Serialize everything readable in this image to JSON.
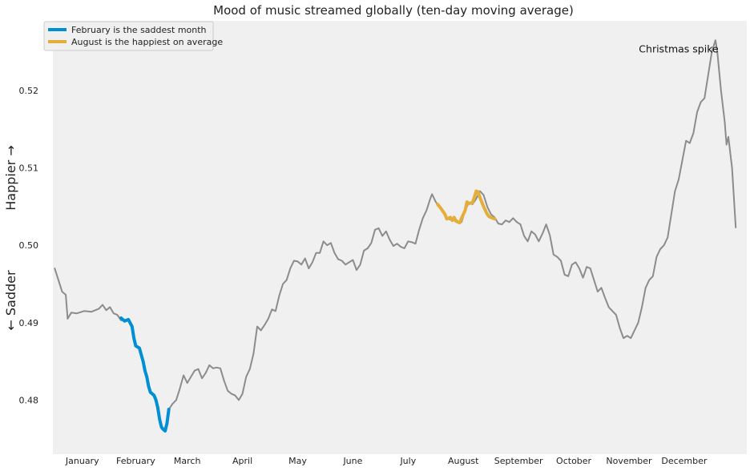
{
  "chart_data": {
    "type": "line",
    "title": "Mood of music streamed globally (ten-day moving average)",
    "ylabel_top": "Happier →",
    "ylabel_bottom": "← Sadder",
    "ylim": [
      0.473,
      0.529
    ],
    "xlim": [
      0,
      377
    ],
    "yticks": [
      "0.48",
      "0.49",
      "0.50",
      "0.51",
      "0.52"
    ],
    "ytick_values": [
      0.48,
      0.49,
      0.5,
      0.51,
      0.52
    ],
    "months": [
      "January",
      "February",
      "March",
      "April",
      "May",
      "June",
      "July",
      "August",
      "September",
      "October",
      "November",
      "December"
    ],
    "month_tick_days": [
      16,
      45,
      73,
      103,
      133,
      163,
      193,
      223,
      253,
      283,
      313,
      343
    ],
    "grid": false,
    "legend_position": "top-left",
    "annotation": {
      "text": "Christmas spike",
      "day": 340,
      "value": 0.5249
    },
    "colors": {
      "base": "#8c8c8c",
      "february": "#008fd5",
      "august": "#e5ae38",
      "background": "#f0f0f0"
    },
    "series": [
      {
        "name": "",
        "role": "base",
        "points": [
          [
            1,
            0.497
          ],
          [
            3,
            0.4955
          ],
          [
            5,
            0.494
          ],
          [
            7,
            0.4936
          ],
          [
            8,
            0.4905
          ],
          [
            10,
            0.4913
          ],
          [
            13,
            0.4912
          ],
          [
            17,
            0.4915
          ],
          [
            21,
            0.4914
          ],
          [
            25,
            0.4918
          ],
          [
            27,
            0.4923
          ],
          [
            29,
            0.4916
          ],
          [
            31,
            0.492
          ],
          [
            33,
            0.4912
          ],
          [
            35,
            0.491
          ],
          [
            37,
            0.4903
          ],
          [
            41,
            0.4904
          ],
          [
            43,
            0.4895
          ],
          [
            45,
            0.487
          ],
          [
            47,
            0.4867
          ],
          [
            49,
            0.485
          ],
          [
            51,
            0.483
          ],
          [
            53,
            0.481
          ],
          [
            55,
            0.4806
          ],
          [
            57,
            0.479
          ],
          [
            59,
            0.4765
          ],
          [
            61,
            0.476
          ],
          [
            63,
            0.4788
          ],
          [
            65,
            0.4795
          ],
          [
            67,
            0.48
          ],
          [
            69,
            0.4815
          ],
          [
            71,
            0.4832
          ],
          [
            73,
            0.4822
          ],
          [
            75,
            0.483
          ],
          [
            77,
            0.4838
          ],
          [
            79,
            0.484
          ],
          [
            81,
            0.4828
          ],
          [
            83,
            0.4835
          ],
          [
            85,
            0.4845
          ],
          [
            87,
            0.4841
          ],
          [
            89,
            0.4842
          ],
          [
            91,
            0.4841
          ],
          [
            93,
            0.4825
          ],
          [
            95,
            0.4812
          ],
          [
            97,
            0.4808
          ],
          [
            99,
            0.4806
          ],
          [
            101,
            0.48
          ],
          [
            103,
            0.4808
          ],
          [
            105,
            0.483
          ],
          [
            107,
            0.484
          ],
          [
            109,
            0.486
          ],
          [
            111,
            0.4895
          ],
          [
            113,
            0.489
          ],
          [
            115,
            0.4897
          ],
          [
            117,
            0.4905
          ],
          [
            119,
            0.4917
          ],
          [
            121,
            0.4915
          ],
          [
            123,
            0.4935
          ],
          [
            125,
            0.495
          ],
          [
            127,
            0.4955
          ],
          [
            129,
            0.497
          ],
          [
            131,
            0.498
          ],
          [
            133,
            0.4979
          ],
          [
            135,
            0.4975
          ],
          [
            137,
            0.4983
          ],
          [
            139,
            0.497
          ],
          [
            141,
            0.4978
          ],
          [
            143,
            0.499
          ],
          [
            145,
            0.499
          ],
          [
            147,
            0.5005
          ],
          [
            149,
            0.5
          ],
          [
            151,
            0.5003
          ],
          [
            153,
            0.499
          ],
          [
            155,
            0.4982
          ],
          [
            157,
            0.498
          ],
          [
            159,
            0.4975
          ],
          [
            161,
            0.4978
          ],
          [
            163,
            0.4981
          ],
          [
            165,
            0.4968
          ],
          [
            167,
            0.4975
          ],
          [
            169,
            0.4993
          ],
          [
            171,
            0.4996
          ],
          [
            173,
            0.5003
          ],
          [
            175,
            0.502
          ],
          [
            177,
            0.5022
          ],
          [
            179,
            0.5012
          ],
          [
            181,
            0.5018
          ],
          [
            183,
            0.5007
          ],
          [
            185,
            0.4999
          ],
          [
            187,
            0.5002
          ],
          [
            189,
            0.4998
          ],
          [
            191,
            0.4996
          ],
          [
            193,
            0.5005
          ],
          [
            195,
            0.5004
          ],
          [
            197,
            0.5002
          ],
          [
            199,
            0.502
          ],
          [
            201,
            0.5035
          ],
          [
            203,
            0.5045
          ],
          [
            205,
            0.506
          ],
          [
            206,
            0.5066
          ],
          [
            208,
            0.5056
          ],
          [
            210,
            0.505
          ],
          [
            212,
            0.5043
          ],
          [
            214,
            0.5035
          ],
          [
            216,
            0.5033
          ],
          [
            218,
            0.5035
          ],
          [
            220,
            0.5031
          ],
          [
            222,
            0.503
          ],
          [
            224,
            0.5045
          ],
          [
            226,
            0.5055
          ],
          [
            228,
            0.5053
          ],
          [
            230,
            0.506
          ],
          [
            232,
            0.507
          ],
          [
            234,
            0.5065
          ],
          [
            236,
            0.505
          ],
          [
            238,
            0.504
          ],
          [
            240,
            0.5036
          ],
          [
            242,
            0.5028
          ],
          [
            244,
            0.5027
          ],
          [
            246,
            0.5032
          ],
          [
            248,
            0.503
          ],
          [
            250,
            0.5035
          ],
          [
            252,
            0.503
          ],
          [
            254,
            0.5027
          ],
          [
            256,
            0.5012
          ],
          [
            258,
            0.5005
          ],
          [
            260,
            0.5018
          ],
          [
            262,
            0.5014
          ],
          [
            264,
            0.5005
          ],
          [
            266,
            0.5015
          ],
          [
            268,
            0.5027
          ],
          [
            270,
            0.5013
          ],
          [
            272,
            0.4988
          ],
          [
            274,
            0.4985
          ],
          [
            276,
            0.498
          ],
          [
            278,
            0.4962
          ],
          [
            280,
            0.496
          ],
          [
            282,
            0.4975
          ],
          [
            284,
            0.4978
          ],
          [
            286,
            0.497
          ],
          [
            288,
            0.4958
          ],
          [
            290,
            0.4972
          ],
          [
            292,
            0.497
          ],
          [
            294,
            0.4955
          ],
          [
            296,
            0.494
          ],
          [
            298,
            0.4945
          ],
          [
            300,
            0.4932
          ],
          [
            302,
            0.492
          ],
          [
            304,
            0.4915
          ],
          [
            306,
            0.491
          ],
          [
            308,
            0.4893
          ],
          [
            310,
            0.488
          ],
          [
            312,
            0.4883
          ],
          [
            314,
            0.488
          ],
          [
            316,
            0.489
          ],
          [
            318,
            0.49
          ],
          [
            320,
            0.492
          ],
          [
            322,
            0.4945
          ],
          [
            324,
            0.4955
          ],
          [
            326,
            0.496
          ],
          [
            328,
            0.4985
          ],
          [
            330,
            0.4995
          ],
          [
            332,
            0.5
          ],
          [
            334,
            0.501
          ],
          [
            336,
            0.504
          ],
          [
            338,
            0.507
          ],
          [
            340,
            0.5085
          ],
          [
            342,
            0.511
          ],
          [
            344,
            0.5135
          ],
          [
            346,
            0.5132
          ],
          [
            348,
            0.5145
          ],
          [
            350,
            0.5172
          ],
          [
            352,
            0.5185
          ],
          [
            354,
            0.519
          ],
          [
            356,
            0.522
          ],
          [
            358,
            0.525
          ],
          [
            360,
            0.5265
          ],
          [
            361,
            0.525
          ],
          [
            363,
            0.52
          ],
          [
            365,
            0.516
          ],
          [
            366,
            0.513
          ],
          [
            367,
            0.514
          ],
          [
            369,
            0.51
          ],
          [
            371,
            0.5023
          ]
        ]
      },
      {
        "name": "February is the saddest month",
        "role": "february",
        "points": [
          [
            37,
            0.4906
          ],
          [
            39,
            0.4902
          ],
          [
            41,
            0.4904
          ],
          [
            43,
            0.4895
          ],
          [
            44,
            0.488
          ],
          [
            45,
            0.487
          ],
          [
            47,
            0.4867
          ],
          [
            49,
            0.485
          ],
          [
            50,
            0.4838
          ],
          [
            51,
            0.483
          ],
          [
            52,
            0.4818
          ],
          [
            53,
            0.481
          ],
          [
            55,
            0.4806
          ],
          [
            56,
            0.48
          ],
          [
            57,
            0.479
          ],
          [
            58,
            0.4775
          ],
          [
            59,
            0.4765
          ],
          [
            60,
            0.4762
          ],
          [
            61,
            0.476
          ],
          [
            62,
            0.477
          ],
          [
            63,
            0.4788
          ]
        ]
      },
      {
        "name": "August is the happiest on average",
        "role": "august",
        "points": [
          [
            209,
            0.5053
          ],
          [
            211,
            0.5047
          ],
          [
            213,
            0.504
          ],
          [
            214,
            0.5034
          ],
          [
            216,
            0.5036
          ],
          [
            217,
            0.5032
          ],
          [
            218,
            0.5036
          ],
          [
            219,
            0.5031
          ],
          [
            221,
            0.5029
          ],
          [
            222,
            0.5035
          ],
          [
            224,
            0.5045
          ],
          [
            225,
            0.5056
          ],
          [
            226,
            0.5054
          ],
          [
            228,
            0.5055
          ],
          [
            229,
            0.5062
          ],
          [
            230,
            0.507
          ],
          [
            231,
            0.5069
          ],
          [
            232,
            0.5062
          ],
          [
            234,
            0.505
          ],
          [
            236,
            0.504
          ],
          [
            237,
            0.5037
          ],
          [
            238,
            0.5036
          ],
          [
            240,
            0.5034
          ]
        ]
      }
    ]
  }
}
